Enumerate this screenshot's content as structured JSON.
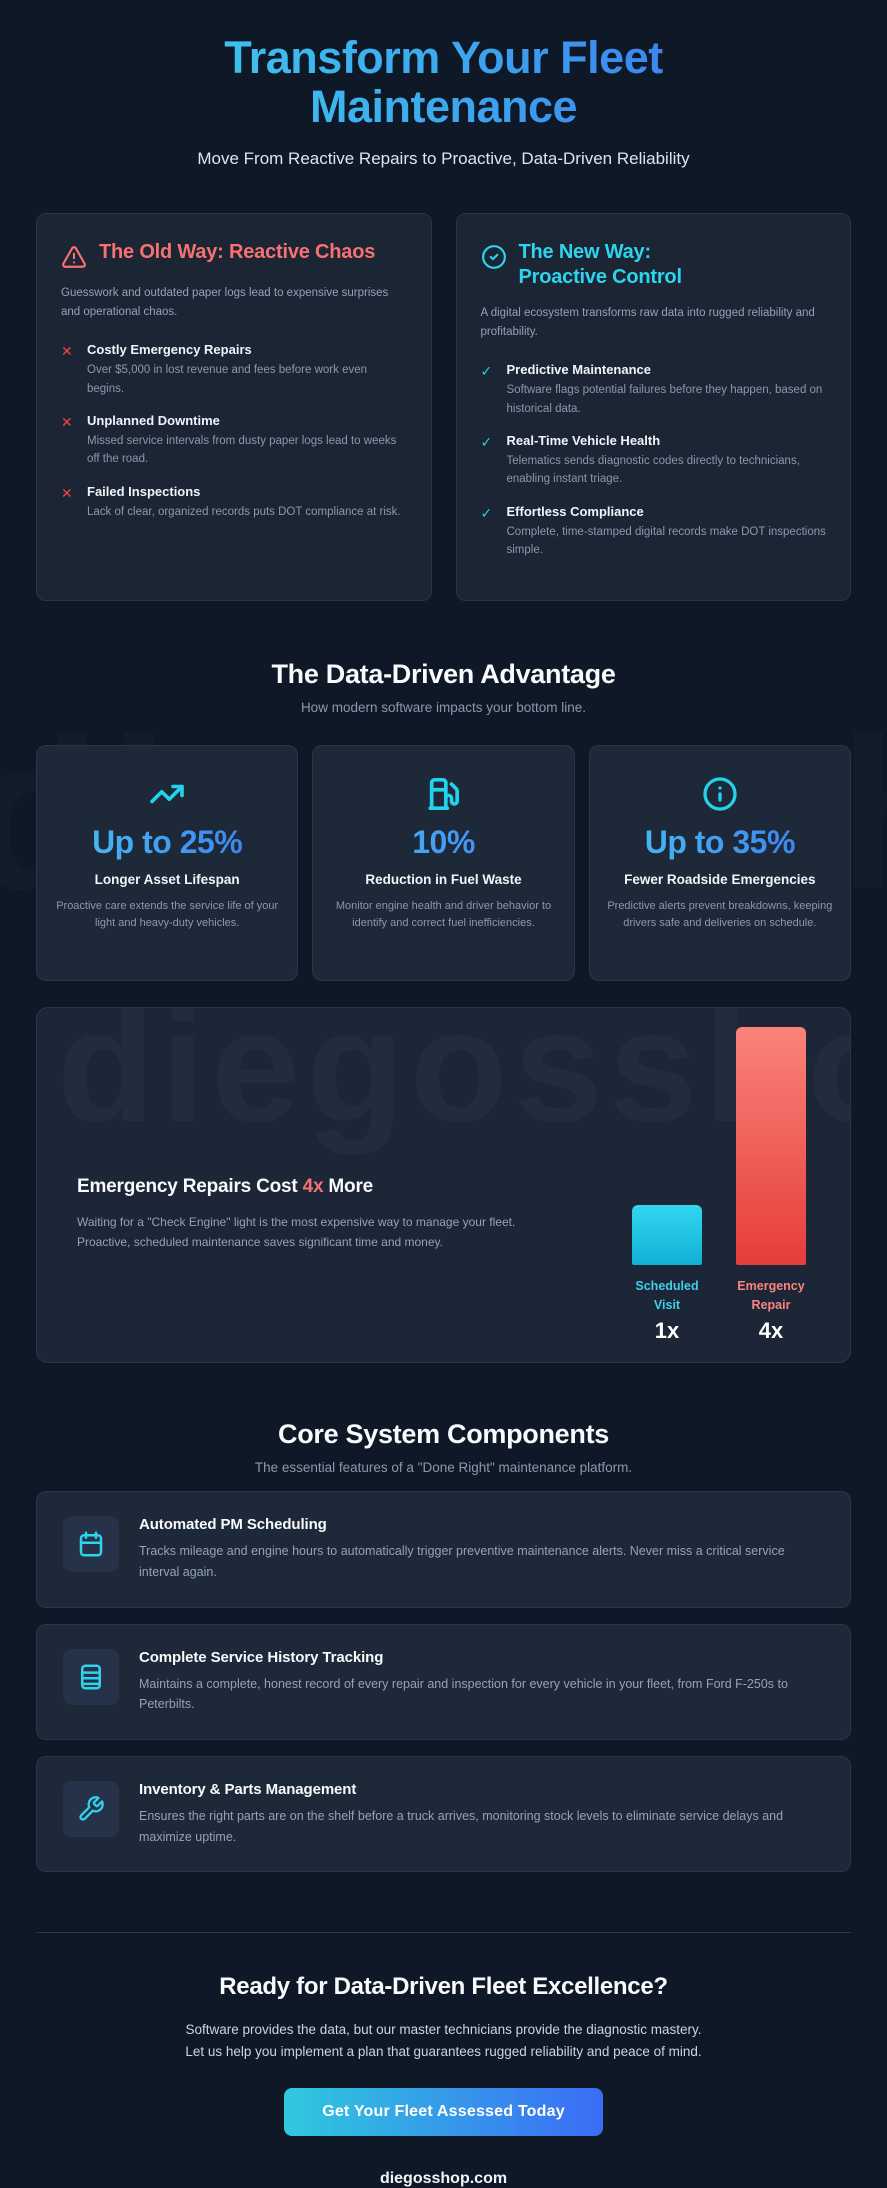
{
  "page": {
    "watermark": "diegosshop"
  },
  "colors": {
    "background": "#0f1826",
    "card_background": "#1c2636",
    "accent_cyan": "#22d3ee",
    "accent_blue": "#3b82f6",
    "accent_red": "#f87171",
    "muted_text": "#94a3b8"
  },
  "header": {
    "title": "Transform Your Fleet Maintenance",
    "subtitle": "Move From Reactive Repairs to Proactive, Data-Driven Reliability"
  },
  "comparison": {
    "old_way": {
      "icon": "warning-triangle-icon",
      "title": "The Old Way: Reactive Chaos",
      "description": "Guesswork and outdated paper logs lead to expensive surprises and operational chaos.",
      "bullet_glyph": "✕",
      "items": [
        {
          "title": "Costly Emergency Repairs",
          "description": "Over $5,000 in lost revenue and fees before work even begins."
        },
        {
          "title": "Unplanned Downtime",
          "description": "Missed service intervals from dusty paper logs lead to weeks off the road."
        },
        {
          "title": "Failed Inspections",
          "description": "Lack of clear, organized records puts DOT compliance at risk."
        }
      ]
    },
    "new_way": {
      "icon": "check-circle-icon",
      "title": "The New Way: Proactive Control",
      "description": "A digital ecosystem transforms raw data into rugged reliability and profitability.",
      "bullet_glyph": "✓",
      "items": [
        {
          "title": "Predictive Maintenance",
          "description": "Software flags potential failures before they happen, based on historical data."
        },
        {
          "title": "Real-Time Vehicle Health",
          "description": "Telematics sends diagnostic codes directly to technicians, enabling instant triage."
        },
        {
          "title": "Effortless Compliance",
          "description": "Complete, time-stamped digital records make DOT inspections simple."
        }
      ]
    }
  },
  "advantage": {
    "title": "The Data-Driven Advantage",
    "subtitle": "How modern software impacts your bottom line.",
    "stats": [
      {
        "icon": "trending-up-icon",
        "value": "Up to 25%",
        "label": "Longer Asset Lifespan",
        "description": "Proactive care extends the service life of your light and heavy-duty vehicles."
      },
      {
        "icon": "fuel-pump-icon",
        "value": "10%",
        "label": "Reduction in Fuel Waste",
        "description": "Monitor engine health and driver behavior to identify and correct fuel inefficiencies."
      },
      {
        "icon": "info-circle-icon",
        "value": "Up to 35%",
        "label": "Fewer Roadside Emergencies",
        "description": "Predictive alerts prevent breakdowns, keeping drivers safe and deliveries on schedule."
      }
    ]
  },
  "chart": {
    "title_prefix": "Emergency Repairs Cost ",
    "title_highlight": "4x",
    "title_suffix": " More",
    "description_line1": "Waiting for a \"Check Engine\" light is the most expensive way to manage your fleet.",
    "description_line2": "Proactive, scheduled maintenance saves significant time and money."
  },
  "chart_data": {
    "type": "bar",
    "title": "Emergency Repairs Cost 4x More",
    "categories": [
      "Scheduled Visit",
      "Emergency Repair"
    ],
    "values": [
      1,
      4
    ],
    "value_labels": [
      "1x",
      "4x"
    ],
    "bar_colors": [
      "#22d3ee",
      "#ef4444"
    ],
    "ylim": [
      0,
      4
    ],
    "grid": false,
    "legend": false
  },
  "components": {
    "title": "Core System Components",
    "subtitle": "The essential features of a \"Done Right\" maintenance platform.",
    "features": [
      {
        "icon": "calendar-icon",
        "title": "Automated PM Scheduling",
        "description": "Tracks mileage and engine hours to automatically trigger preventive maintenance alerts. Never miss a critical service interval again."
      },
      {
        "icon": "service-history-icon",
        "title": "Complete Service History Tracking",
        "description": "Maintains a complete, honest record of every repair and inspection for every vehicle in your fleet, from Ford F-250s to Peterbilts."
      },
      {
        "icon": "wrench-icon",
        "title": "Inventory & Parts Management",
        "description": "Ensures the right parts are on the shelf before a truck arrives, monitoring stock levels to eliminate service delays and maximize uptime."
      }
    ]
  },
  "footer": {
    "title": "Ready for Data-Driven Fleet Excellence?",
    "description_line1": "Software provides the data, but our master technicians provide the diagnostic mastery.",
    "description_line2": "Let us help you implement a plan that guarantees rugged reliability and peace of mind.",
    "cta_label": "Get Your Fleet Assessed Today",
    "domain": "diegosshop.com"
  }
}
